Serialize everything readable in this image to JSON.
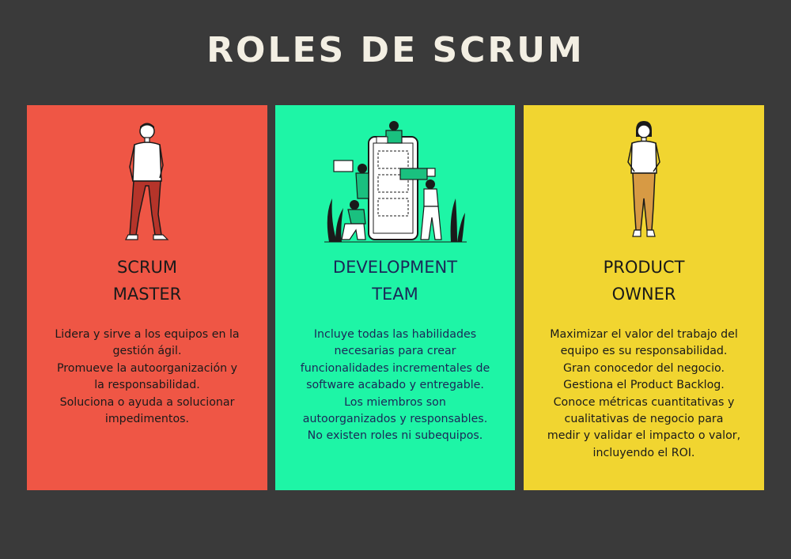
{
  "title": "ROLES DE SCRUM",
  "colors": {
    "background": "#3a3a3a",
    "title": "#f3efe3",
    "scrum_master_card": "#ef5645",
    "development_team_card": "#1ef5a6",
    "product_owner_card": "#f1d530",
    "dev_team_text": "#1b2858"
  },
  "cards": [
    {
      "id": "scrum-master",
      "illustration": "standing-man-icon",
      "title_lines": [
        "SCRUM",
        "MASTER"
      ],
      "description_lines": [
        "Lidera y sirve a los equipos en la",
        "gestión ágil.",
        "Promueve la autoorganización y",
        "la responsabilidad.",
        "Soluciona o ayuda a solucionar",
        "impedimentos."
      ]
    },
    {
      "id": "development-team",
      "illustration": "team-working-on-phone-icon",
      "title_lines": [
        "DEVELOPMENT",
        "TEAM"
      ],
      "description_lines": [
        "Incluye todas las habilidades",
        "necesarias para crear",
        "funcionalidades incrementales de",
        "software acabado y entregable.",
        "Los miembros son",
        "autoorganizados y responsables.",
        "No existen roles ni subequipos."
      ]
    },
    {
      "id": "product-owner",
      "illustration": "standing-woman-icon",
      "title_lines": [
        "PRODUCT",
        "OWNER"
      ],
      "description_lines": [
        "Maximizar el valor del trabajo del",
        "equipo es su responsabilidad.",
        "Gran conocedor del negocio.",
        "Gestiona el Product Backlog.",
        "Conoce métricas cuantitativas y",
        "cualitativas de negocio para",
        "medir y validar el impacto o valor,",
        "incluyendo el ROI."
      ]
    }
  ]
}
